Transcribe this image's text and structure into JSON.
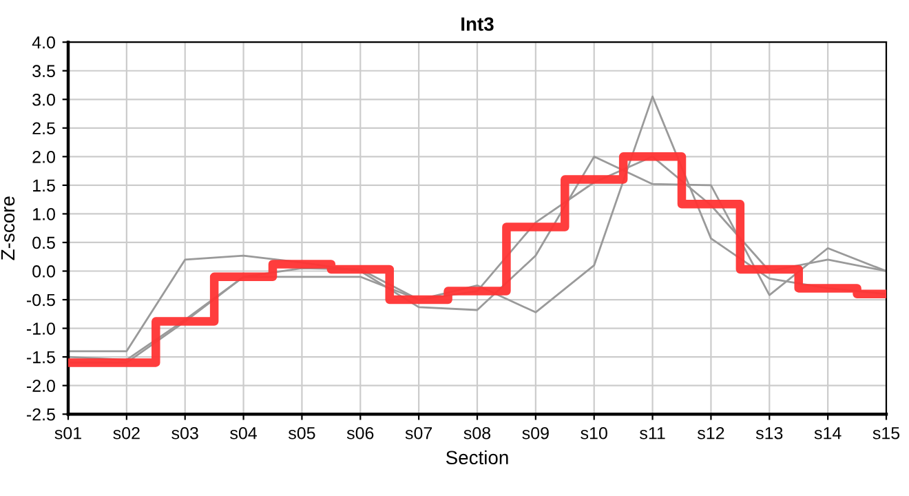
{
  "chart_data": {
    "type": "line",
    "title": "Int3",
    "xlabel": "Section",
    "ylabel": "Z-score",
    "categories": [
      "s01",
      "s02",
      "s03",
      "s04",
      "s05",
      "s06",
      "s07",
      "s08",
      "s09",
      "s10",
      "s11",
      "s12",
      "s13",
      "s14",
      "s15"
    ],
    "series": [
      {
        "color": "#9a9a9a",
        "values": [
          -1.5,
          -1.55,
          -0.85,
          -0.1,
          -0.1,
          -0.1,
          -0.5,
          -0.35,
          0.85,
          1.55,
          2.0,
          1.15,
          0.0,
          0.2,
          0.0
        ]
      },
      {
        "color": "#9a9a9a",
        "values": [
          -1.6,
          -1.6,
          -0.88,
          -0.1,
          0.05,
          0.03,
          -0.5,
          -0.25,
          -0.72,
          0.1,
          3.05,
          0.57,
          -0.13,
          -0.3,
          -0.4
        ]
      },
      {
        "color": "#9a9a9a",
        "values": [
          -1.4,
          -1.4,
          0.2,
          0.27,
          0.15,
          0.0,
          -0.63,
          -0.68,
          0.27,
          2.0,
          1.52,
          1.5,
          -0.42,
          0.4,
          0.0
        ]
      },
      {
        "type": "step",
        "color": "#ff3333",
        "values": [
          -1.6,
          -1.6,
          -0.88,
          -0.1,
          0.12,
          0.03,
          -0.5,
          -0.35,
          0.77,
          1.6,
          2.0,
          1.17,
          0.03,
          -0.3,
          -0.4
        ]
      }
    ],
    "ylim": [
      -2.5,
      4.0
    ],
    "yticks": [
      {
        "value": -2.5,
        "label": "-2.5"
      },
      {
        "value": -2.0,
        "label": "-2.0"
      },
      {
        "value": -1.5,
        "label": "-1.5"
      },
      {
        "value": -1.0,
        "label": "-1.0"
      },
      {
        "value": -0.5,
        "label": "-0.5"
      },
      {
        "value": 0.0,
        "label": "0.0"
      },
      {
        "value": 0.5,
        "label": "0.5"
      },
      {
        "value": 1.0,
        "label": "1.0"
      },
      {
        "value": 1.5,
        "label": "1.5"
      },
      {
        "value": 2.0,
        "label": "2.0"
      },
      {
        "value": 2.5,
        "label": "2.5"
      },
      {
        "value": 3.0,
        "label": "3.0"
      },
      {
        "value": 3.5,
        "label": "3.5"
      },
      {
        "value": 4.0,
        "label": "4.0"
      }
    ],
    "grid": true
  }
}
